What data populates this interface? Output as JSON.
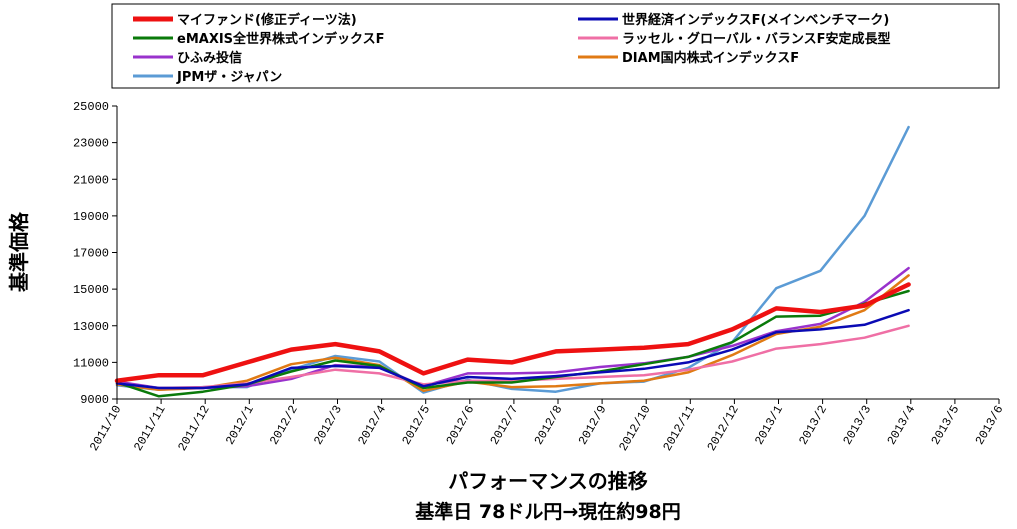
{
  "chart_data": {
    "type": "line",
    "ylabel": "基準価格",
    "xlabel": "パフォーマンスの推移",
    "subtitle": "基準日 78ドル円→現在約98円",
    "ylim": [
      9000,
      25000
    ],
    "yticks": [
      9000,
      11000,
      13000,
      15000,
      17000,
      19000,
      21000,
      23000,
      25000
    ],
    "grid": false,
    "legend_position": "top",
    "categories": [
      "2011/10",
      "2011/11",
      "2011/12",
      "2012/1",
      "2012/2",
      "2012/3",
      "2012/4",
      "2012/5",
      "2012/6",
      "2012/7",
      "2012/8",
      "2012/9",
      "2012/10",
      "2012/11",
      "2012/12",
      "2013/1",
      "2013/2",
      "2013/3",
      "2013/4",
      "2013/5",
      "2013/6"
    ],
    "series": [
      {
        "name": "マイファンド(修正ディーツ法)",
        "color": "#ee1111",
        "bold": true,
        "x": [
          0,
          0.95,
          1.95,
          2.95,
          3.95,
          4.95,
          5.95,
          6.95,
          7.95,
          8.95,
          9.95,
          10.95,
          11.95,
          12.95,
          13.95,
          14.95,
          15.95,
          16.95,
          17.95
        ],
        "values": [
          10000,
          10300,
          10300,
          11000,
          11700,
          12000,
          11600,
          10400,
          11150,
          11000,
          11600,
          11700,
          11800,
          12000,
          12800,
          13950,
          13750,
          14100,
          15250
        ]
      },
      {
        "name": "世界経済インデックスF(メインベンチマーク)",
        "color": "#0a0ab4",
        "bold": false,
        "x": [
          0,
          0.95,
          1.95,
          2.95,
          3.95,
          4.95,
          5.95,
          6.95,
          7.95,
          8.95,
          9.95,
          10.95,
          11.95,
          12.95,
          13.95,
          14.95,
          15.95,
          16.95,
          17.95
        ],
        "values": [
          9850,
          9600,
          9600,
          9800,
          10700,
          10800,
          10700,
          9700,
          10200,
          10100,
          10250,
          10450,
          10650,
          11000,
          11700,
          12650,
          12800,
          13050,
          13850
        ]
      },
      {
        "name": "eMAXIS全世界株式インデックスF",
        "color": "#0a7a0a",
        "bold": false,
        "x": [
          0,
          0.95,
          1.95,
          2.95,
          3.95,
          4.95,
          5.95,
          6.95,
          7.95,
          8.95,
          9.95,
          10.95,
          11.95,
          12.95,
          13.95,
          14.95,
          15.95,
          16.95,
          17.95
        ],
        "values": [
          9900,
          9150,
          9400,
          9800,
          10500,
          11100,
          10800,
          9600,
          9900,
          9900,
          10200,
          10500,
          10900,
          11300,
          12100,
          13500,
          13550,
          14200,
          14900
        ]
      },
      {
        "name": "ラッセル・グローバル・バランスF安定成長型",
        "color": "#ef6fa5",
        "bold": false,
        "x": [
          0,
          0.95,
          1.95,
          2.95,
          3.95,
          4.95,
          5.95,
          6.95,
          7.95,
          8.95,
          9.95,
          10.95,
          11.95,
          12.95,
          13.95,
          14.95,
          15.95,
          16.95,
          17.95
        ],
        "values": [
          9850,
          9600,
          9650,
          9850,
          10200,
          10600,
          10400,
          9800,
          10000,
          10000,
          10100,
          10200,
          10300,
          10600,
          11050,
          11750,
          12000,
          12350,
          13000
        ]
      },
      {
        "name": "ひふみ投信",
        "color": "#9932cc",
        "bold": false,
        "x": [
          0,
          0.95,
          1.95,
          2.95,
          3.95,
          4.95,
          5.95,
          6.95,
          7.95,
          8.95,
          9.95,
          10.95,
          11.95,
          12.95,
          13.95,
          14.95,
          15.95,
          16.95,
          17.95
        ],
        "values": [
          9950,
          9600,
          9600,
          9700,
          10100,
          10850,
          10750,
          9700,
          10400,
          10400,
          10450,
          10750,
          10950,
          11300,
          11900,
          12700,
          13100,
          14300,
          16150
        ]
      },
      {
        "name": "DIAM国内株式インデックスF",
        "color": "#e07a14",
        "bold": false,
        "x": [
          0,
          0.95,
          1.95,
          2.95,
          3.95,
          4.95,
          5.95,
          6.95,
          7.95,
          8.95,
          9.95,
          10.95,
          11.95,
          12.95,
          13.95,
          14.95,
          15.95,
          16.95,
          17.95
        ],
        "values": [
          9800,
          9500,
          9600,
          10000,
          10900,
          11250,
          10850,
          9450,
          9950,
          9650,
          9700,
          9850,
          10000,
          10450,
          11400,
          12550,
          12950,
          13850,
          15750
        ]
      },
      {
        "name": "JPMザ・ジャパン",
        "color": "#5b9bd5",
        "bold": false,
        "x": [
          0,
          0.95,
          1.95,
          2.95,
          3.95,
          4.95,
          5.95,
          6.95,
          7.95,
          8.95,
          9.95,
          10.95,
          11.95,
          12.95,
          13.95,
          14.95,
          15.95,
          16.95,
          17.95
        ],
        "values": [
          9750,
          9500,
          9650,
          9650,
          10600,
          11350,
          11050,
          9350,
          10050,
          9550,
          9400,
          9850,
          9950,
          10700,
          12100,
          15050,
          16000,
          19000,
          23850
        ]
      }
    ]
  }
}
